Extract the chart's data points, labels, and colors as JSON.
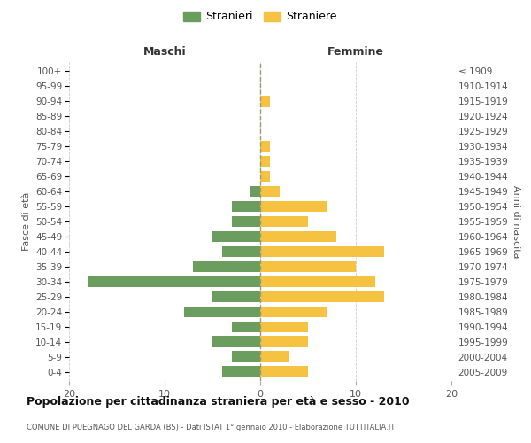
{
  "age_groups": [
    "0-4",
    "5-9",
    "10-14",
    "15-19",
    "20-24",
    "25-29",
    "30-34",
    "35-39",
    "40-44",
    "45-49",
    "50-54",
    "55-59",
    "60-64",
    "65-69",
    "70-74",
    "75-79",
    "80-84",
    "85-89",
    "90-94",
    "95-99",
    "100+"
  ],
  "birth_years": [
    "2005-2009",
    "2000-2004",
    "1995-1999",
    "1990-1994",
    "1985-1989",
    "1980-1984",
    "1975-1979",
    "1970-1974",
    "1965-1969",
    "1960-1964",
    "1955-1959",
    "1950-1954",
    "1945-1949",
    "1940-1944",
    "1935-1939",
    "1930-1934",
    "1925-1929",
    "1920-1924",
    "1915-1919",
    "1910-1914",
    "≤ 1909"
  ],
  "males": [
    4,
    3,
    5,
    3,
    8,
    5,
    18,
    7,
    4,
    5,
    3,
    3,
    1,
    0,
    0,
    0,
    0,
    0,
    0,
    0,
    0
  ],
  "females": [
    5,
    3,
    5,
    5,
    7,
    13,
    12,
    10,
    13,
    8,
    5,
    7,
    2,
    1,
    1,
    1,
    0,
    0,
    1,
    0,
    0
  ],
  "male_color": "#6b9e5e",
  "female_color": "#f5c242",
  "background_color": "#ffffff",
  "grid_color": "#cccccc",
  "title": "Popolazione per cittadinanza straniera per età e sesso - 2010",
  "subtitle": "COMUNE DI PUEGNAGO DEL GARDA (BS) - Dati ISTAT 1° gennaio 2010 - Elaborazione TUTTITALIA.IT",
  "xlabel_left": "Maschi",
  "xlabel_right": "Femmine",
  "ylabel_left": "Fasce di età",
  "ylabel_right": "Anni di nascita",
  "legend_stranieri": "Stranieri",
  "legend_straniere": "Straniere",
  "xlim": 20,
  "bar_height": 0.75
}
